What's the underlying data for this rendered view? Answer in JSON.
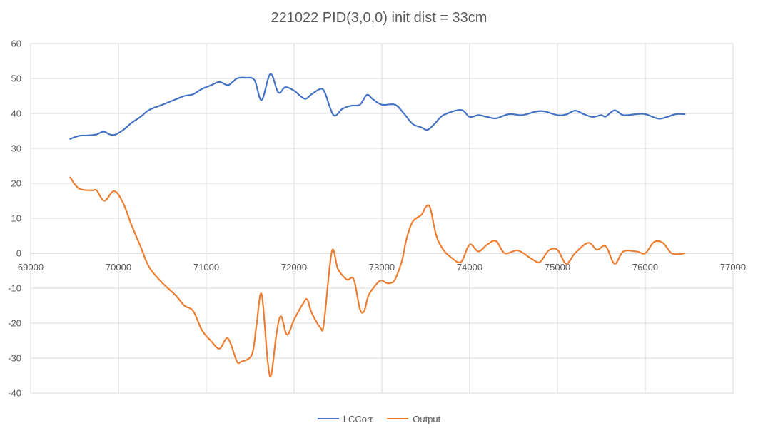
{
  "chart_data": {
    "type": "line",
    "title": "221022 PID(3,0,0) init dist = 33cm",
    "xlabel": "",
    "ylabel": "",
    "xlim": [
      69000,
      77000
    ],
    "ylim": [
      -40,
      60
    ],
    "xticks": [
      69000,
      70000,
      71000,
      72000,
      73000,
      74000,
      75000,
      76000,
      77000
    ],
    "yticks": [
      -40,
      -30,
      -20,
      -10,
      0,
      10,
      20,
      30,
      40,
      50,
      60
    ],
    "grid": true,
    "legend_position": "bottom",
    "series": [
      {
        "name": "LCCorr",
        "color": "#4472C4",
        "points": [
          [
            69450,
            32.7
          ],
          [
            69550,
            33.6
          ],
          [
            69650,
            33.7
          ],
          [
            69750,
            34.0
          ],
          [
            69830,
            34.8
          ],
          [
            69900,
            34.0
          ],
          [
            69960,
            33.9
          ],
          [
            70050,
            35.2
          ],
          [
            70150,
            37.3
          ],
          [
            70250,
            39.0
          ],
          [
            70350,
            41.0
          ],
          [
            70500,
            42.5
          ],
          [
            70650,
            44.0
          ],
          [
            70750,
            45.0
          ],
          [
            70850,
            45.5
          ],
          [
            70950,
            47.0
          ],
          [
            71050,
            48.0
          ],
          [
            71150,
            49.0
          ],
          [
            71250,
            48.1
          ],
          [
            71350,
            50.0
          ],
          [
            71450,
            50.2
          ],
          [
            71550,
            49.5
          ],
          [
            71630,
            43.8
          ],
          [
            71730,
            51.3
          ],
          [
            71820,
            46.0
          ],
          [
            71900,
            47.5
          ],
          [
            72000,
            46.5
          ],
          [
            72120,
            44.2
          ],
          [
            72200,
            45.5
          ],
          [
            72300,
            47.0
          ],
          [
            72350,
            46.0
          ],
          [
            72450,
            39.5
          ],
          [
            72550,
            41.3
          ],
          [
            72650,
            42.2
          ],
          [
            72750,
            42.5
          ],
          [
            72830,
            45.3
          ],
          [
            72900,
            44.0
          ],
          [
            73000,
            42.5
          ],
          [
            73150,
            42.5
          ],
          [
            73250,
            40.0
          ],
          [
            73350,
            37.0
          ],
          [
            73450,
            36.0
          ],
          [
            73520,
            35.3
          ],
          [
            73600,
            37.0
          ],
          [
            73700,
            39.5
          ],
          [
            73900,
            41.0
          ],
          [
            74000,
            39.0
          ],
          [
            74100,
            39.5
          ],
          [
            74200,
            39.0
          ],
          [
            74300,
            38.6
          ],
          [
            74450,
            39.8
          ],
          [
            74600,
            39.5
          ],
          [
            74750,
            40.5
          ],
          [
            74850,
            40.6
          ],
          [
            75000,
            39.5
          ],
          [
            75100,
            39.7
          ],
          [
            75200,
            40.8
          ],
          [
            75300,
            39.8
          ],
          [
            75400,
            39.0
          ],
          [
            75500,
            39.5
          ],
          [
            75550,
            39.1
          ],
          [
            75650,
            40.9
          ],
          [
            75750,
            39.5
          ],
          [
            75900,
            39.8
          ],
          [
            76000,
            39.8
          ],
          [
            76150,
            38.5
          ],
          [
            76250,
            39.0
          ],
          [
            76350,
            39.8
          ],
          [
            76450,
            39.8
          ]
        ]
      },
      {
        "name": "Output",
        "color": "#ED7D31",
        "points": [
          [
            69450,
            21.7
          ],
          [
            69550,
            18.5
          ],
          [
            69700,
            18.0
          ],
          [
            69750,
            18.0
          ],
          [
            69840,
            15.0
          ],
          [
            69950,
            17.8
          ],
          [
            70050,
            14.5
          ],
          [
            70150,
            8.0
          ],
          [
            70250,
            2.0
          ],
          [
            70350,
            -4.0
          ],
          [
            70500,
            -8.5
          ],
          [
            70650,
            -12.0
          ],
          [
            70750,
            -15.0
          ],
          [
            70850,
            -16.5
          ],
          [
            70950,
            -22.0
          ],
          [
            71050,
            -25.0
          ],
          [
            71150,
            -27.3
          ],
          [
            71230,
            -24.3
          ],
          [
            71280,
            -26.0
          ],
          [
            71350,
            -31.0
          ],
          [
            71400,
            -31.0
          ],
          [
            71520,
            -29.0
          ],
          [
            71570,
            -21.0
          ],
          [
            71630,
            -11.7
          ],
          [
            71700,
            -31.0
          ],
          [
            71740,
            -34.7
          ],
          [
            71800,
            -23.0
          ],
          [
            71850,
            -18.0
          ],
          [
            71920,
            -23.3
          ],
          [
            72000,
            -19.0
          ],
          [
            72100,
            -14.5
          ],
          [
            72150,
            -13.2
          ],
          [
            72200,
            -17.0
          ],
          [
            72300,
            -21.3
          ],
          [
            72340,
            -20.0
          ],
          [
            72430,
            0.5
          ],
          [
            72500,
            -4.5
          ],
          [
            72600,
            -7.5
          ],
          [
            72680,
            -7.5
          ],
          [
            72750,
            -16.0
          ],
          [
            72800,
            -16.5
          ],
          [
            72850,
            -12.0
          ],
          [
            72950,
            -8.5
          ],
          [
            73000,
            -7.8
          ],
          [
            73050,
            -8.5
          ],
          [
            73100,
            -8.5
          ],
          [
            73150,
            -7.5
          ],
          [
            73230,
            -2.0
          ],
          [
            73280,
            4.0
          ],
          [
            73350,
            9.0
          ],
          [
            73450,
            11.0
          ],
          [
            73500,
            13.2
          ],
          [
            73550,
            13.0
          ],
          [
            73620,
            5.0
          ],
          [
            73700,
            1.0
          ],
          [
            73780,
            -1.0
          ],
          [
            73900,
            -2.5
          ],
          [
            74000,
            2.5
          ],
          [
            74100,
            0.5
          ],
          [
            74200,
            2.5
          ],
          [
            74300,
            3.5
          ],
          [
            74400,
            0.0
          ],
          [
            74550,
            0.8
          ],
          [
            74700,
            -1.5
          ],
          [
            74800,
            -2.5
          ],
          [
            74900,
            0.8
          ],
          [
            75000,
            1.0
          ],
          [
            75100,
            -3.0
          ],
          [
            75200,
            0.0
          ],
          [
            75350,
            3.0
          ],
          [
            75450,
            1.0
          ],
          [
            75550,
            2.0
          ],
          [
            75650,
            -3.0
          ],
          [
            75750,
            0.5
          ],
          [
            75900,
            0.5
          ],
          [
            76000,
            0.0
          ],
          [
            76100,
            3.2
          ],
          [
            76200,
            3.0
          ],
          [
            76300,
            0.0
          ],
          [
            76400,
            -0.2
          ],
          [
            76450,
            0.0
          ]
        ]
      }
    ]
  }
}
